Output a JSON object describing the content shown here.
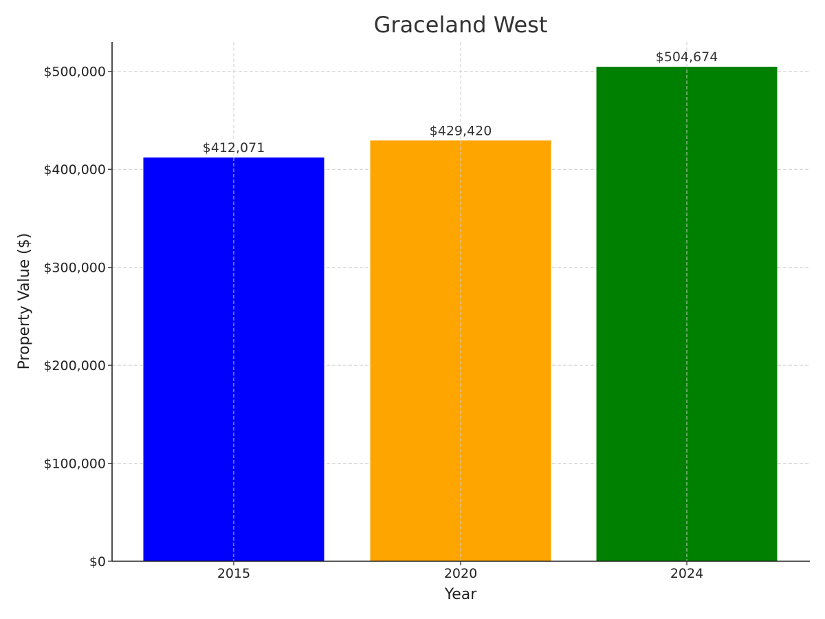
{
  "chart_data": {
    "type": "bar",
    "title": "Graceland West",
    "xlabel": "Year",
    "ylabel": "Property Value ($)",
    "categories": [
      "2015",
      "2020",
      "2024"
    ],
    "values": [
      412071,
      429420,
      504674
    ],
    "value_labels": [
      "$412,071",
      "$429,420",
      "$504,674"
    ],
    "bar_colors": [
      "#0000ff",
      "#ffa500",
      "#008000"
    ],
    "ylim": [
      0,
      530000
    ],
    "y_ticks": [
      0,
      100000,
      200000,
      300000,
      400000,
      500000
    ],
    "y_tick_labels": [
      "$0",
      "$100,000",
      "$200,000",
      "$300,000",
      "$400,000",
      "$500,000"
    ],
    "grid": true,
    "legend": "none"
  }
}
